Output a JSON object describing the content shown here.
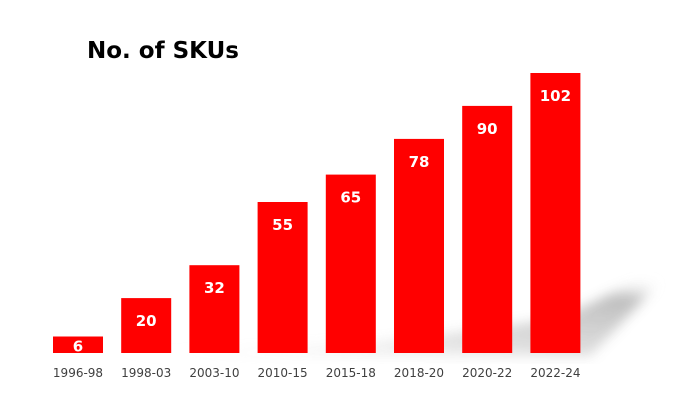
{
  "chart_data": {
    "type": "bar",
    "title": "No. of SKUs",
    "categories": [
      "1996-98",
      "1998-03",
      "2003-10",
      "2010-15",
      "2015-18",
      "2018-20",
      "2020-22",
      "2022-24"
    ],
    "values": [
      6,
      20,
      32,
      55,
      65,
      78,
      90,
      102
    ],
    "xlabel": "",
    "ylabel": "",
    "ylim": [
      0,
      102
    ],
    "grid": false,
    "legend": "none",
    "colors": {
      "bar": "#ff0000",
      "label": "#ffffff",
      "tick": "#404040",
      "shadow": "#c8c8c8"
    }
  }
}
